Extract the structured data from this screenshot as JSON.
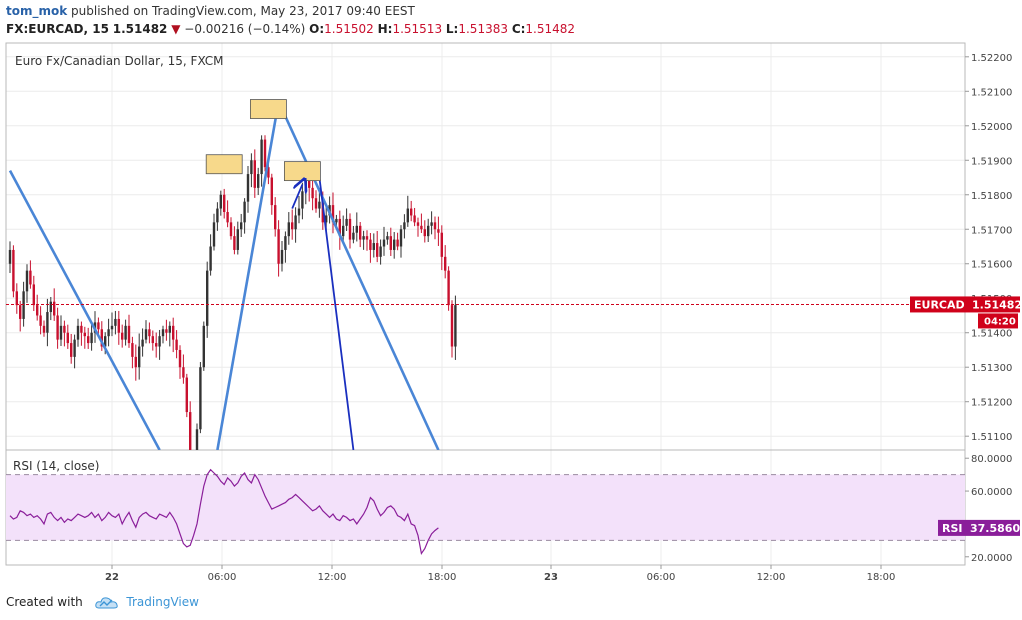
{
  "header": {
    "user": "tom_mok",
    "published": "published on TradingView.com, May 23, 2017 09:40 EEST",
    "symbol": "FX:EURCAD, 15",
    "last": "1.51482",
    "change_arrow": "▼",
    "change": "−0.00216 (−0.14%)",
    "o_label": "O:",
    "o_value": "1.51502",
    "h_label": "H:",
    "h_value": "1.51513",
    "l_label": "L:",
    "l_value": "1.51383",
    "c_label": "C:",
    "c_value": "1.51482"
  },
  "footer": {
    "created_with": "Created with",
    "brand": "TradingView",
    "logo_icon": "tradingview-cloud-icon"
  },
  "colors": {
    "up": "#333333",
    "down": "#c8102e",
    "trendline": "#4a86d6",
    "arrow": "#1a2fbf",
    "rsi_line": "#8a1e9a",
    "rsi_band": "#f3e1fa",
    "price_line": "#d0021b",
    "grid": "#ececec",
    "box_fill": "#f7d98b"
  },
  "chart_data": [
    {
      "type": "candlestick",
      "title": "Euro Fx/Canadian Dollar, 15, FXCM",
      "ylim": [
        1.5106,
        1.5224
      ],
      "y_ticks": [
        "1.52200",
        "1.52100",
        "1.52000",
        "1.51900",
        "1.51800",
        "1.51700",
        "1.51600",
        "1.51500",
        "1.51400",
        "1.51300",
        "1.51200",
        "1.51100"
      ],
      "x_ticks": [
        "22",
        "06:00",
        "12:00",
        "18:00",
        "23",
        "06:00",
        "12:00",
        "18:00"
      ],
      "current_price": 1.51482,
      "price_label": "EURCAD",
      "price_value": "1.51482",
      "countdown": "04:20",
      "closes": [
        1.5164,
        1.5152,
        1.5148,
        1.5144,
        1.5152,
        1.5158,
        1.5154,
        1.5148,
        1.5145,
        1.5142,
        1.514,
        1.5146,
        1.5149,
        1.5145,
        1.5138,
        1.5142,
        1.514,
        1.5137,
        1.5133,
        1.5138,
        1.5142,
        1.514,
        1.5139,
        1.5137,
        1.514,
        1.5143,
        1.5141,
        1.5136,
        1.5139,
        1.5141,
        1.5142,
        1.5144,
        1.514,
        1.5138,
        1.5142,
        1.5137,
        1.5133,
        1.513,
        1.5136,
        1.5138,
        1.5141,
        1.5139,
        1.5137,
        1.5136,
        1.5139,
        1.5141,
        1.514,
        1.5142,
        1.5138,
        1.5135,
        1.513,
        1.5127,
        1.5117,
        1.51,
        1.5095,
        1.5112,
        1.513,
        1.5142,
        1.5158,
        1.5165,
        1.5172,
        1.5176,
        1.518,
        1.5175,
        1.5172,
        1.5168,
        1.5164,
        1.517,
        1.5172,
        1.5178,
        1.5186,
        1.519,
        1.5182,
        1.5186,
        1.5196,
        1.5188,
        1.5185,
        1.5177,
        1.517,
        1.516,
        1.5164,
        1.5168,
        1.5172,
        1.517,
        1.5174,
        1.5176,
        1.5181,
        1.5184,
        1.5182,
        1.5179,
        1.5176,
        1.5178,
        1.5172,
        1.5174,
        1.5177,
        1.5172,
        1.5173,
        1.5168,
        1.5171,
        1.5173,
        1.5167,
        1.5169,
        1.5171,
        1.5167,
        1.5168,
        1.5167,
        1.5164,
        1.5166,
        1.5162,
        1.5165,
        1.5167,
        1.5168,
        1.5164,
        1.5167,
        1.5165,
        1.517,
        1.5172,
        1.5176,
        1.5174,
        1.5172,
        1.5171,
        1.517,
        1.5168,
        1.5171,
        1.5172,
        1.517,
        1.5169,
        1.5162,
        1.5158,
        1.5148,
        1.5136,
        1.5148
      ],
      "trendlines": [
        {
          "from": [
            0,
            1.5187
          ],
          "to": [
            44,
            1.5106
          ]
        },
        {
          "from": [
            61,
            1.5106
          ],
          "to": [
            79,
            1.5207
          ]
        },
        {
          "from": [
            79,
            1.5207
          ],
          "to": [
            126,
            1.5106
          ]
        },
        {
          "from": [
            91,
            1.5185
          ],
          "to": [
            101,
            1.5106
          ],
          "kind": "arrow"
        }
      ],
      "annotations": [
        {
          "type": "box",
          "x": 63,
          "y": 1.5189
        },
        {
          "type": "box",
          "x": 76,
          "y": 1.5205
        },
        {
          "type": "box",
          "x": 86,
          "y": 1.5187
        },
        {
          "type": "arrow_up",
          "from": [
            83,
            1.5176
          ],
          "to": [
            86,
            1.5183
          ]
        }
      ]
    },
    {
      "type": "line",
      "title": "RSI (14, close)",
      "ylim": [
        15,
        85
      ],
      "y_ticks": [
        "80.0000",
        "60.0000",
        "40.0000",
        "20.0000"
      ],
      "band": [
        30,
        70
      ],
      "current_value": 37.586,
      "rsi_label": "RSI",
      "rsi_value": "37.5860",
      "values": [
        45,
        43,
        44,
        48,
        47,
        45,
        46,
        44,
        45,
        43,
        40,
        46,
        47,
        44,
        42,
        44,
        41,
        43,
        42,
        44,
        46,
        45,
        44,
        45,
        47,
        44,
        46,
        42,
        44,
        47,
        45,
        44,
        46,
        40,
        44,
        47,
        42,
        38,
        44,
        46,
        47,
        45,
        44,
        43,
        46,
        45,
        44,
        47,
        44,
        40,
        34,
        28,
        26,
        27,
        33,
        40,
        52,
        63,
        70,
        73,
        71,
        69,
        66,
        64,
        68,
        66,
        63,
        65,
        69,
        71,
        67,
        65,
        70,
        67,
        62,
        57,
        53,
        49,
        50,
        51,
        52,
        53,
        55,
        56,
        58,
        56,
        54,
        52,
        50,
        48,
        49,
        51,
        48,
        46,
        44,
        46,
        43,
        42,
        45,
        44,
        42,
        43,
        40,
        43,
        46,
        50,
        56,
        54,
        49,
        45,
        47,
        50,
        51,
        49,
        45,
        44,
        42,
        46,
        40,
        39,
        33,
        22,
        25,
        30,
        34,
        36,
        37.6
      ],
      "x_ticks": [
        "22",
        "06:00",
        "12:00",
        "18:00",
        "23",
        "06:00",
        "12:00",
        "18:00"
      ]
    }
  ]
}
